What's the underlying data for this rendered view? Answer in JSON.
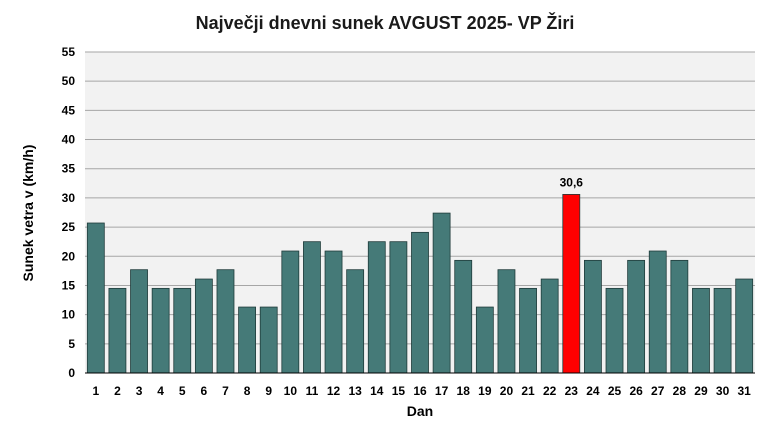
{
  "chart_data": {
    "type": "bar",
    "title": "Največji dnevni sunek AVGUST 2025- VP Žiri",
    "xlabel": "Dan",
    "ylabel": "Sunek vetra v (km/h)",
    "ylim": [
      0,
      55
    ],
    "yticks": [
      0,
      5,
      10,
      15,
      20,
      25,
      30,
      35,
      40,
      45,
      50,
      55
    ],
    "grid": true,
    "legend": "none",
    "categories": [
      "1",
      "2",
      "3",
      "4",
      "5",
      "6",
      "7",
      "8",
      "9",
      "10",
      "11",
      "12",
      "13",
      "14",
      "15",
      "16",
      "17",
      "18",
      "19",
      "20",
      "21",
      "22",
      "23",
      "24",
      "25",
      "26",
      "27",
      "28",
      "29",
      "30",
      "31"
    ],
    "values": [
      25.7,
      14.5,
      17.7,
      14.5,
      14.5,
      16.1,
      17.7,
      11.3,
      11.3,
      20.9,
      22.5,
      20.9,
      17.7,
      22.5,
      22.5,
      24.1,
      27.4,
      19.3,
      11.3,
      17.7,
      14.5,
      16.1,
      30.6,
      19.3,
      14.5,
      19.3,
      20.9,
      19.3,
      14.5,
      14.5,
      16.1
    ],
    "highlight": {
      "category": "23",
      "label": "30,6",
      "color": "#ff0000"
    },
    "bar_color": "#457a78",
    "plot_background": "#f2f2f2"
  }
}
